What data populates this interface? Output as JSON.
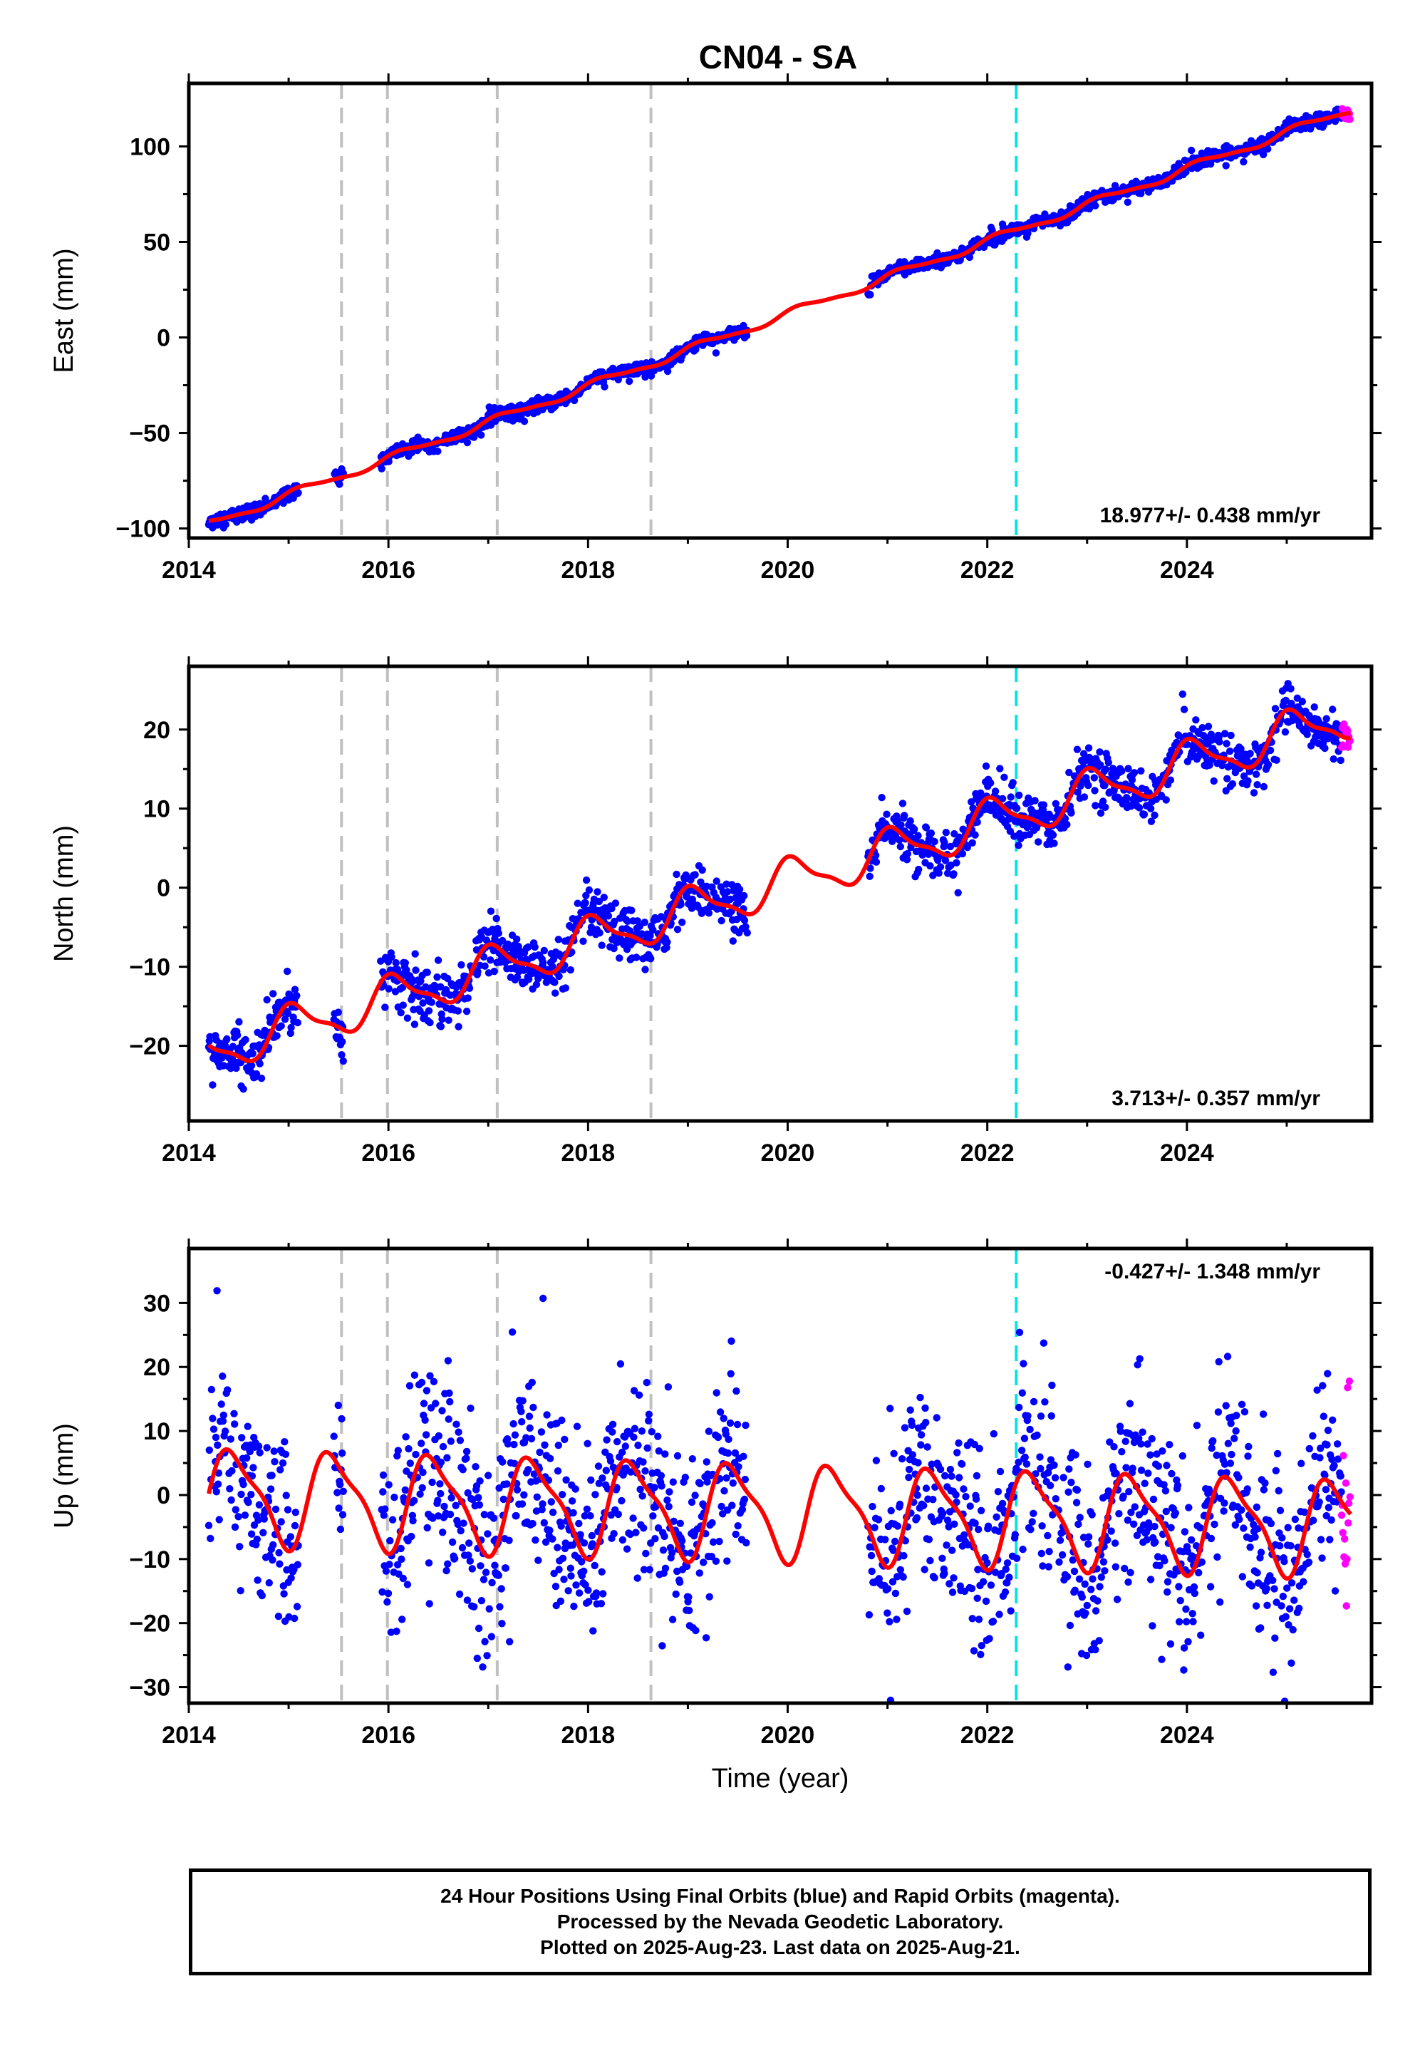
{
  "title": "CN04 - SA",
  "footer": {
    "line1": "24 Hour Positions Using Final Orbits (blue) and Rapid Orbits (magenta).",
    "line2": "Processed by the Nevada Geodetic Laboratory.",
    "line3": "Plotted on 2025-Aug-23. Last data on 2025-Aug-21."
  },
  "colors": {
    "final_orbits": "#0000ff",
    "rapid_orbits": "#ff00ff",
    "model_fit": "#ff0000",
    "event_line": "#c0c0c0",
    "equipment_change_line": "#00e5e5"
  },
  "chart_data": [
    {
      "type": "scatter",
      "component": "East",
      "ylabel": "East (mm)",
      "xlim": [
        2014.0,
        2025.85
      ],
      "ylim": [
        -105,
        133
      ],
      "xticks": [
        2014,
        2016,
        2018,
        2020,
        2022,
        2024
      ],
      "yticks": [
        -100,
        -50,
        0,
        50,
        100
      ],
      "ytick_labels": [
        "−100",
        "−50",
        "0",
        "50",
        "100"
      ],
      "rate_text": "18.977+/- 0.438 mm/yr",
      "rate_position": "bottom-right",
      "event_lines_gray": [
        2015.53,
        2015.99,
        2017.09,
        2018.63
      ],
      "event_lines_cyan": [
        2022.29
      ],
      "data_gaps": [
        [
          2015.1,
          2015.45
        ],
        [
          2015.55,
          2015.92
        ],
        [
          2019.6,
          2020.8
        ]
      ],
      "fit": {
        "rate": 18.977,
        "offset_2014": -101.5,
        "annual_amp": 2.0,
        "annual_phase": 0.6,
        "semiannual_amp": 0.6
      },
      "noise_sd": 1.9,
      "final_range": [
        2014.2,
        2025.55
      ],
      "rapid_range": [
        2025.55,
        2025.64
      ],
      "series": [
        {
          "name": "Final Orbits (blue)",
          "color": "#0000ff"
        },
        {
          "name": "Rapid Orbits (magenta)",
          "color": "#ff00ff"
        }
      ]
    },
    {
      "type": "scatter",
      "component": "North",
      "ylabel": "North (mm)",
      "xlim": [
        2014.0,
        2025.85
      ],
      "ylim": [
        -29.5,
        28
      ],
      "xticks": [
        2014,
        2016,
        2018,
        2020,
        2022,
        2024
      ],
      "yticks": [
        -20,
        -10,
        0,
        10,
        20
      ],
      "ytick_labels": [
        "−20",
        "−10",
        "0",
        "10",
        "20"
      ],
      "rate_text": "3.713+/- 0.357 mm/yr",
      "rate_position": "bottom-right",
      "event_lines_gray": [
        2015.53,
        2015.99,
        2017.09,
        2018.63
      ],
      "event_lines_cyan": [
        2022.29
      ],
      "data_gaps": [
        [
          2015.1,
          2015.45
        ],
        [
          2015.55,
          2015.92
        ],
        [
          2019.6,
          2020.8
        ]
      ],
      "fit": {
        "rate": 3.713,
        "offset_2014": -21.5,
        "annual_amp": 2.6,
        "annual_phase": 1.2,
        "semiannual_amp": 0.8
      },
      "noise_sd": 1.6,
      "final_range": [
        2014.2,
        2025.55
      ],
      "rapid_range": [
        2025.55,
        2025.64
      ],
      "series": [
        {
          "name": "Final Orbits (blue)",
          "color": "#0000ff"
        },
        {
          "name": "Rapid Orbits (magenta)",
          "color": "#ff00ff"
        }
      ]
    },
    {
      "type": "scatter",
      "component": "Up",
      "ylabel": "Up (mm)",
      "xlabel": "Time (year)",
      "xlim": [
        2014.0,
        2025.85
      ],
      "ylim": [
        -32.5,
        38.5
      ],
      "xticks": [
        2014,
        2016,
        2018,
        2020,
        2022,
        2024
      ],
      "yticks": [
        -30,
        -20,
        -10,
        0,
        10,
        20,
        30
      ],
      "ytick_labels": [
        "−30",
        "−20",
        "−10",
        "0",
        "10",
        "20",
        "30"
      ],
      "rate_text": "-0.427+/- 1.348 mm/yr",
      "rate_position": "top-right",
      "event_lines_gray": [
        2015.53,
        2015.99,
        2017.09,
        2018.63
      ],
      "event_lines_cyan": [
        2022.29
      ],
      "data_gaps": [
        [
          2015.1,
          2015.45
        ],
        [
          2015.55,
          2015.92
        ],
        [
          2019.6,
          2020.8
        ]
      ],
      "fit": {
        "rate": -0.427,
        "offset_2014": 0.0,
        "annual_amp": 7.0,
        "annual_phase": -1.3,
        "semiannual_amp": 2.0
      },
      "noise_sd": 7.5,
      "final_range": [
        2014.2,
        2025.55
      ],
      "rapid_range": [
        2025.55,
        2025.64
      ],
      "series": [
        {
          "name": "Final Orbits (blue)",
          "color": "#0000ff"
        },
        {
          "name": "Rapid Orbits (magenta)",
          "color": "#ff00ff"
        }
      ]
    }
  ]
}
